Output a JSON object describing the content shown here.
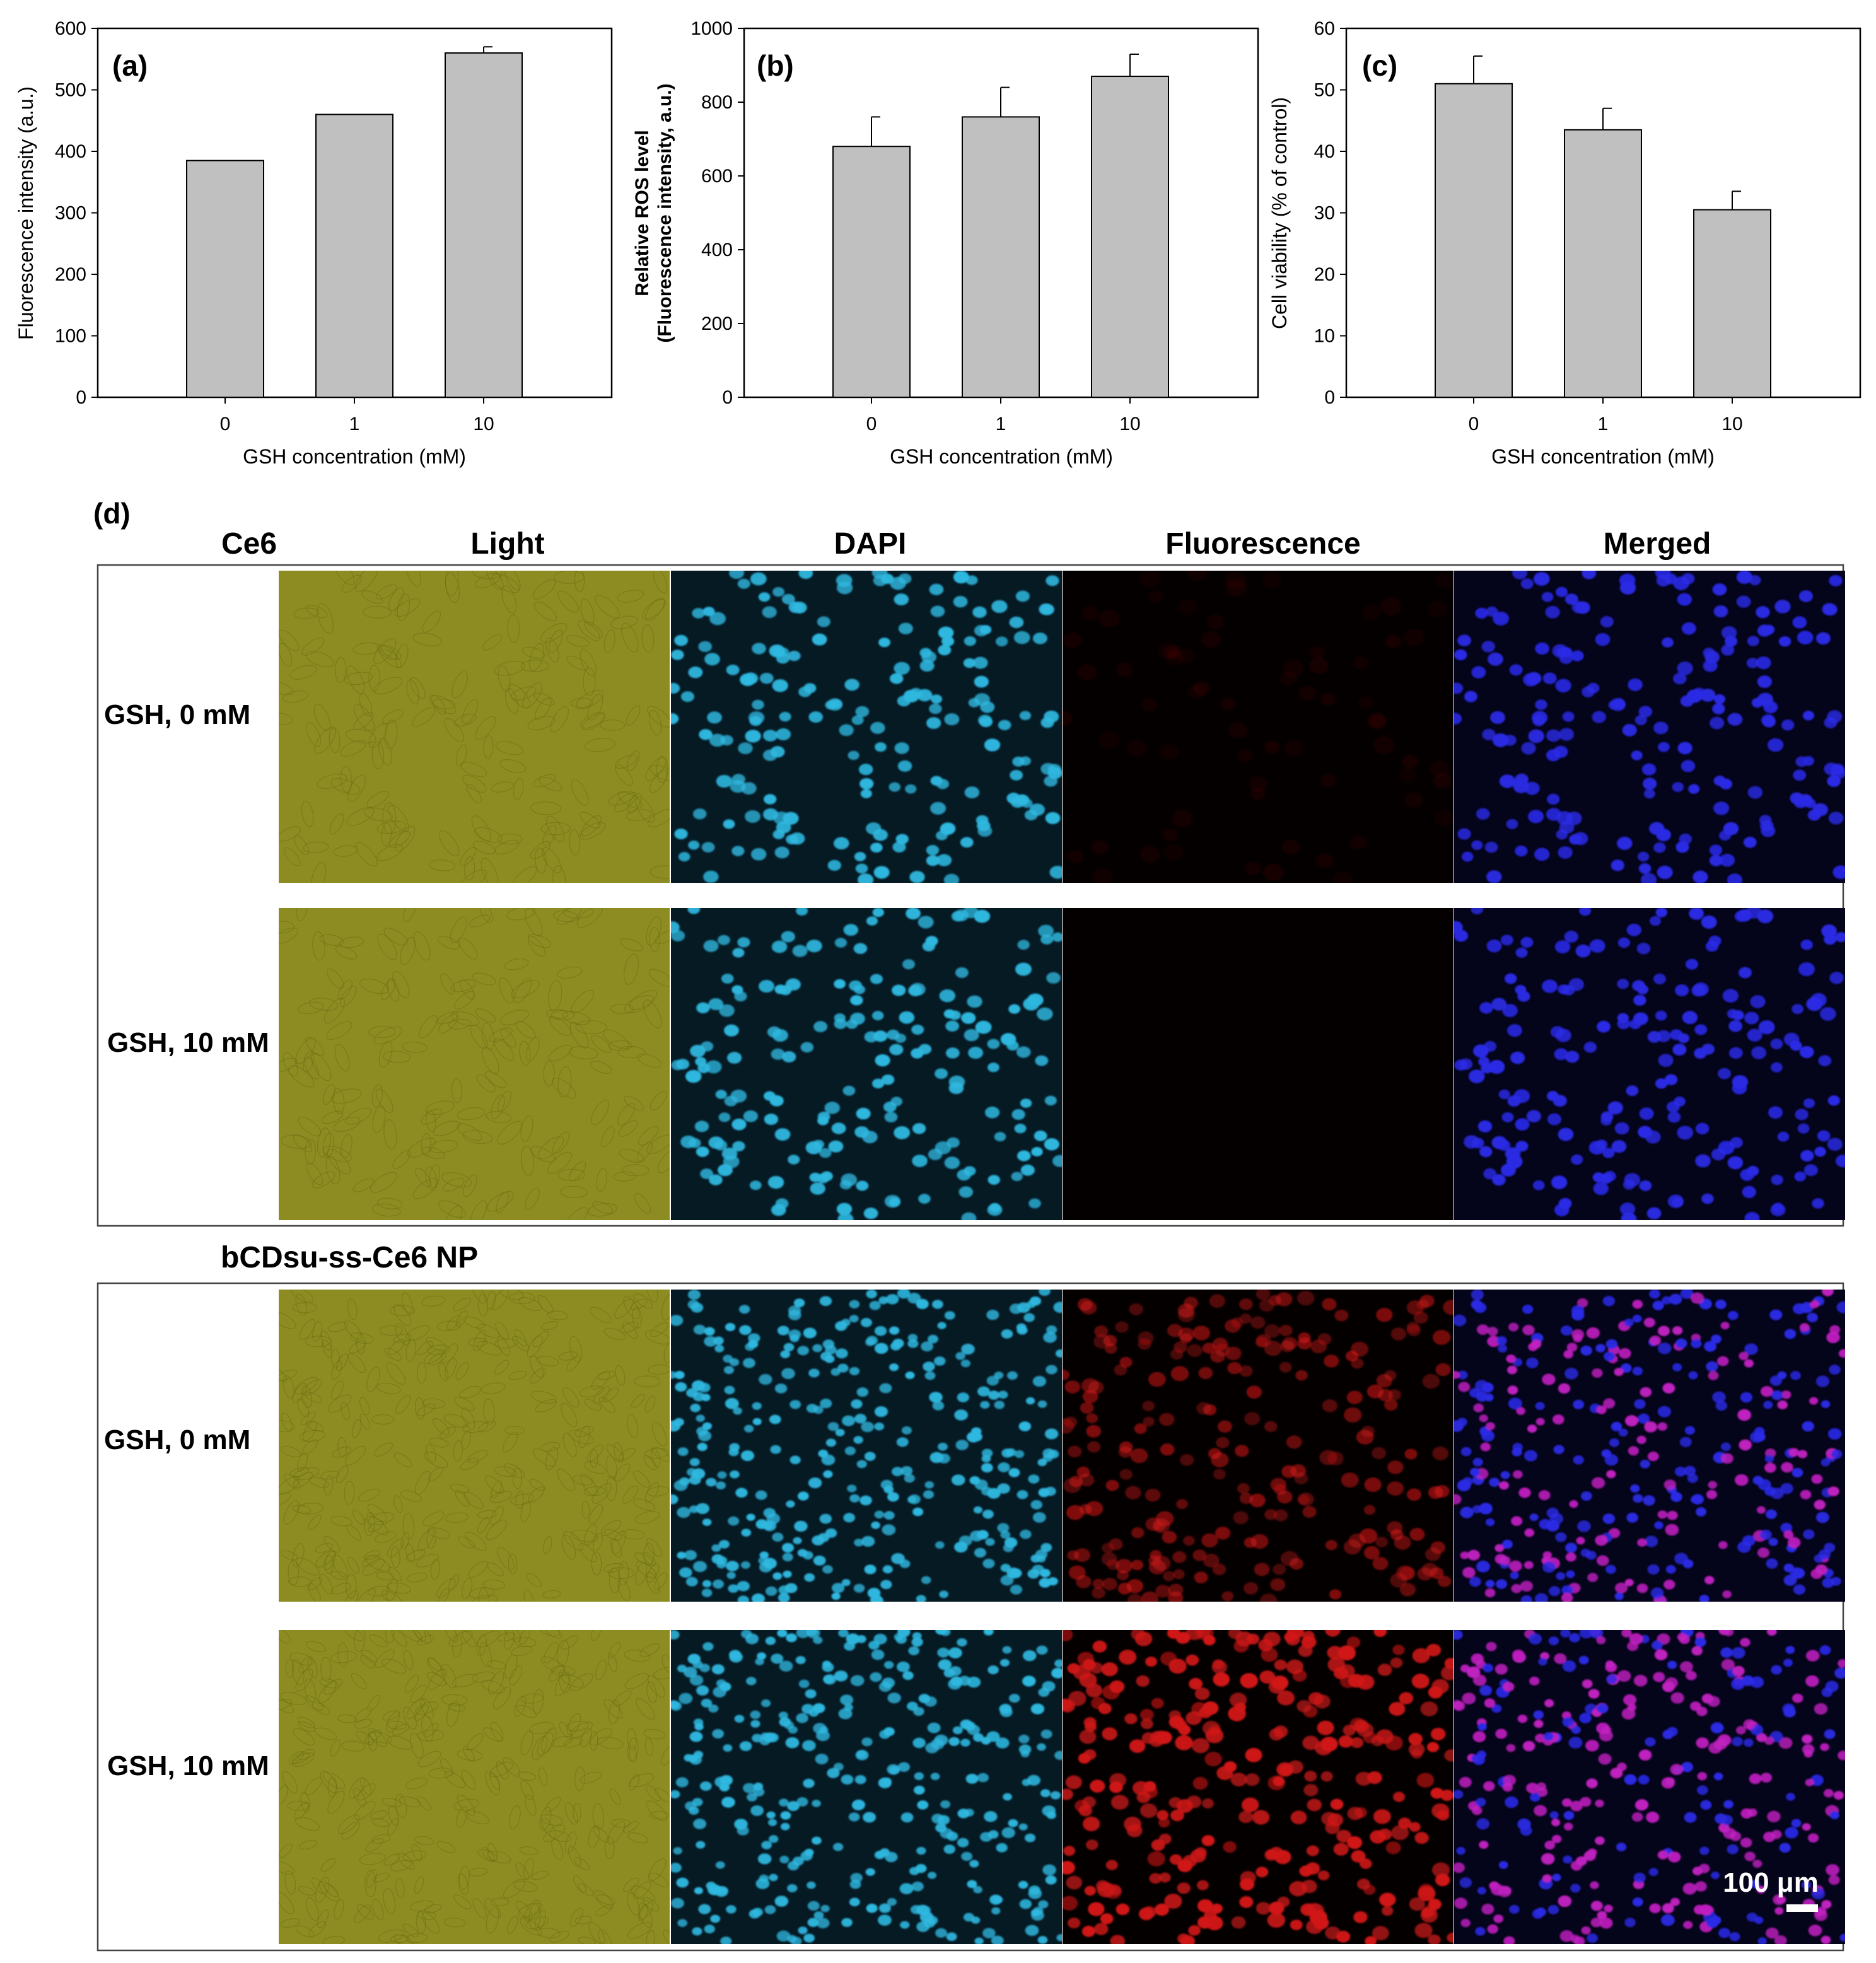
{
  "colors": {
    "bar_fill": "#c0c0c0",
    "light_field": "#8c8c22",
    "dapi_nuclei": "#2fb8e0",
    "dapi_background": "#061a24",
    "fluorescence_red": "#d01818",
    "merged_blue": "#2a2ae6",
    "merged_magenta": "#c020c0"
  },
  "chart_data": [
    {
      "type": "bar",
      "panel": "(a)",
      "categories": [
        "0",
        "1",
        "10"
      ],
      "values": [
        385,
        460,
        560
      ],
      "errors": [
        0,
        0,
        10
      ],
      "xlabel": "GSH concentration (mM)",
      "ylabel": "Fluorescence intensity (a.u.)",
      "ylim": [
        0,
        600
      ],
      "yticks": [
        "0",
        "100",
        "200",
        "300",
        "400",
        "500",
        "600"
      ],
      "grid": false
    },
    {
      "type": "bar",
      "panel": "(b)",
      "categories": [
        "0",
        "1",
        "10"
      ],
      "values": [
        680,
        760,
        870
      ],
      "errors": [
        80,
        80,
        60
      ],
      "xlabel": "GSH concentration (mM)",
      "ylabel_line1": "Relative ROS level",
      "ylabel_line2": "(Fluorescence intensity, a.u.)",
      "ylim": [
        0,
        1000
      ],
      "yticks": [
        "0",
        "200",
        "400",
        "600",
        "800",
        "1000"
      ],
      "grid": false
    },
    {
      "type": "bar",
      "panel": "(c)",
      "categories": [
        "0",
        "1",
        "10"
      ],
      "values": [
        51,
        43.5,
        30.5
      ],
      "errors": [
        4.5,
        3.5,
        3
      ],
      "xlabel": "GSH concentration (mM)",
      "ylabel": "Cell viability (% of control)",
      "ylim": [
        0,
        60
      ],
      "yticks": [
        "0",
        "10",
        "20",
        "30",
        "40",
        "50",
        "60"
      ],
      "grid": false
    }
  ],
  "micrographs": {
    "panel": "(d)",
    "columns": [
      "Light",
      "DAPI",
      "Fluorescence",
      "Merged"
    ],
    "groups": [
      {
        "label": "Ce6",
        "rows": [
          {
            "label": "GSH, 0 mM",
            "fluorescence_level": 0.08
          },
          {
            "label": "GSH, 10 mM",
            "fluorescence_level": 0.0
          }
        ]
      },
      {
        "label": "bCDsu-ss-Ce6 NP",
        "rows": [
          {
            "label": "GSH, 0 mM",
            "fluorescence_level": 0.55
          },
          {
            "label": "GSH, 10 mM",
            "fluorescence_level": 0.95
          }
        ]
      }
    ],
    "scale_bar_label": "100 μm"
  }
}
